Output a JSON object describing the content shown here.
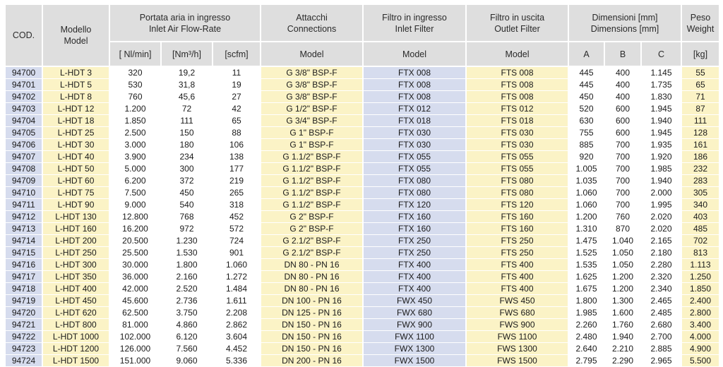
{
  "header": {
    "cod": "COD.",
    "model": [
      "Modello",
      "Model"
    ],
    "flow": [
      "Portata aria in ingresso",
      "Inlet Air Flow-Rate"
    ],
    "flow_units": [
      "[ Nl/min]",
      "[Nm³/h]",
      "[scfm]"
    ],
    "connections": [
      "Attacchi",
      "Connections"
    ],
    "inlet_filter": [
      "Filtro in ingresso",
      "Inlet Filter"
    ],
    "outlet_filter": [
      "Filtro in uscita",
      "Outlet Filter"
    ],
    "sub_model": "Model",
    "dimensions": [
      "Dimensioni [mm]",
      "Dimensions [mm]"
    ],
    "dim_cols": [
      "A",
      "B",
      "C"
    ],
    "weight": [
      "Peso",
      "Weight"
    ],
    "weight_unit": "[kg]"
  },
  "rows": [
    [
      "94700",
      "L-HDT 3",
      "320",
      "19,2",
      "11",
      "G 3/8\" BSP-F",
      "FTX 008",
      "FTS 008",
      "445",
      "400",
      "1.145",
      "55"
    ],
    [
      "94701",
      "L-HDT 5",
      "530",
      "31,8",
      "19",
      "G 3/8\" BSP-F",
      "FTX 008",
      "FTS 008",
      "445",
      "400",
      "1.735",
      "65"
    ],
    [
      "94702",
      "L-HDT 8",
      "760",
      "45,6",
      "27",
      "G 3/8\" BSP-F",
      "FTX 008",
      "FTS 008",
      "450",
      "400",
      "1.830",
      "71"
    ],
    [
      "94703",
      "L-HDT 12",
      "1.200",
      "72",
      "42",
      "G 1/2\" BSP-F",
      "FTX 012",
      "FTS 012",
      "520",
      "600",
      "1.945",
      "87"
    ],
    [
      "94704",
      "L-HDT 18",
      "1.850",
      "111",
      "65",
      "G 3/4\" BSP-F",
      "FTX 018",
      "FTS 018",
      "630",
      "600",
      "1.940",
      "111"
    ],
    [
      "94705",
      "L-HDT 25",
      "2.500",
      "150",
      "88",
      "G 1\" BSP-F",
      "FTX 030",
      "FTS 030",
      "755",
      "600",
      "1.945",
      "128"
    ],
    [
      "94706",
      "L-HDT 30",
      "3.000",
      "180",
      "106",
      "G 1\" BSP-F",
      "FTX 030",
      "FTS 030",
      "885",
      "700",
      "1.935",
      "161"
    ],
    [
      "94707",
      "L-HDT 40",
      "3.900",
      "234",
      "138",
      "G 1.1/2\" BSP-F",
      "FTX 055",
      "FTS 055",
      "920",
      "700",
      "1.920",
      "186"
    ],
    [
      "94708",
      "L-HDT 50",
      "5.000",
      "300",
      "177",
      "G 1.1/2\" BSP-F",
      "FTX 055",
      "FTS 055",
      "1.005",
      "700",
      "1.985",
      "232"
    ],
    [
      "94709",
      "L-HDT 60",
      "6.200",
      "372",
      "219",
      "G 1.1/2\" BSP-F",
      "FTX 080",
      "FTS 080",
      "1.035",
      "700",
      "1.940",
      "283"
    ],
    [
      "94710",
      "L-HDT 75",
      "7.500",
      "450",
      "265",
      "G 1.1/2\" BSP-F",
      "FTX 080",
      "FTS 080",
      "1.060",
      "700",
      "2.000",
      "305"
    ],
    [
      "94711",
      "L-HDT 90",
      "9.000",
      "540",
      "318",
      "G 1.1/2\" BSP-F",
      "FTX 120",
      "FTS 120",
      "1.060",
      "700",
      "1.995",
      "340"
    ],
    [
      "94712",
      "L-HDT 130",
      "12.800",
      "768",
      "452",
      "G 2\" BSP-F",
      "FTX 160",
      "FTS 160",
      "1.200",
      "760",
      "2.020",
      "403"
    ],
    [
      "94713",
      "L-HDT 160",
      "16.200",
      "972",
      "572",
      "G 2\" BSP-F",
      "FTX 160",
      "FTS 160",
      "1.310",
      "870",
      "2.020",
      "485"
    ],
    [
      "94714",
      "L-HDT 200",
      "20.500",
      "1.230",
      "724",
      "G 2.1/2\" BSP-F",
      "FTX 250",
      "FTS 250",
      "1.475",
      "1.040",
      "2.165",
      "702"
    ],
    [
      "94715",
      "L-HDT 250",
      "25.500",
      "1.530",
      "901",
      "G 2.1/2\" BSP-F",
      "FTX 250",
      "FTS 250",
      "1.525",
      "1.050",
      "2.180",
      "813"
    ],
    [
      "94716",
      "L-HDT 300",
      "30.000",
      "1.800",
      "1.060",
      "DN 80 - PN 16",
      "FTX 400",
      "FTS 400",
      "1.535",
      "1.050",
      "2.280",
      "1.113"
    ],
    [
      "94717",
      "L-HDT 350",
      "36.000",
      "2.160",
      "1.272",
      "DN 80 - PN 16",
      "FTX 400",
      "FTS 400",
      "1.625",
      "1.200",
      "2.320",
      "1.250"
    ],
    [
      "94718",
      "L-HDT 400",
      "42.000",
      "2.520",
      "1.484",
      "DN 80 - PN 16",
      "FTX 400",
      "FTS 400",
      "1.675",
      "1.200",
      "2.340",
      "1.850"
    ],
    [
      "94719",
      "L-HDT 450",
      "45.600",
      "2.736",
      "1.611",
      "DN 100 - PN 16",
      "FWX 450",
      "FWS 450",
      "1.800",
      "1.300",
      "2.465",
      "2.400"
    ],
    [
      "94720",
      "L-HDT 620",
      "62.500",
      "3.750",
      "2.208",
      "DN 125 - PN 16",
      "FWX 680",
      "FWS 680",
      "1.985",
      "1.600",
      "2.485",
      "2.800"
    ],
    [
      "94721",
      "L-HDT 800",
      "81.000",
      "4.860",
      "2.862",
      "DN 150 - PN 16",
      "FWX 900",
      "FWS 900",
      "2.260",
      "1.760",
      "2.680",
      "3.400"
    ],
    [
      "94722",
      "L-HDT 1000",
      "102.000",
      "6.120",
      "3.604",
      "DN 150 - PN 16",
      "FWX 1100",
      "FWS 1100",
      "2.480",
      "1.940",
      "2.700",
      "4.000"
    ],
    [
      "94723",
      "L-HDT 1200",
      "126.000",
      "7.560",
      "4.452",
      "DN 150 - PN 16",
      "FWX 1300",
      "FWS 1300",
      "2.640",
      "2.210",
      "2.885",
      "4.900"
    ],
    [
      "94724",
      "L-HDT 1500",
      "151.000",
      "9.060",
      "5.336",
      "DN 200 - PN 16",
      "FWX 1500",
      "FWS 1500",
      "2.795",
      "2.290",
      "2.965",
      "5.500"
    ]
  ],
  "colors": {
    "header_bg": "#dedede",
    "yellow": "#fbf3c6",
    "blue": "#d6dcee",
    "white": "#ffffff"
  }
}
